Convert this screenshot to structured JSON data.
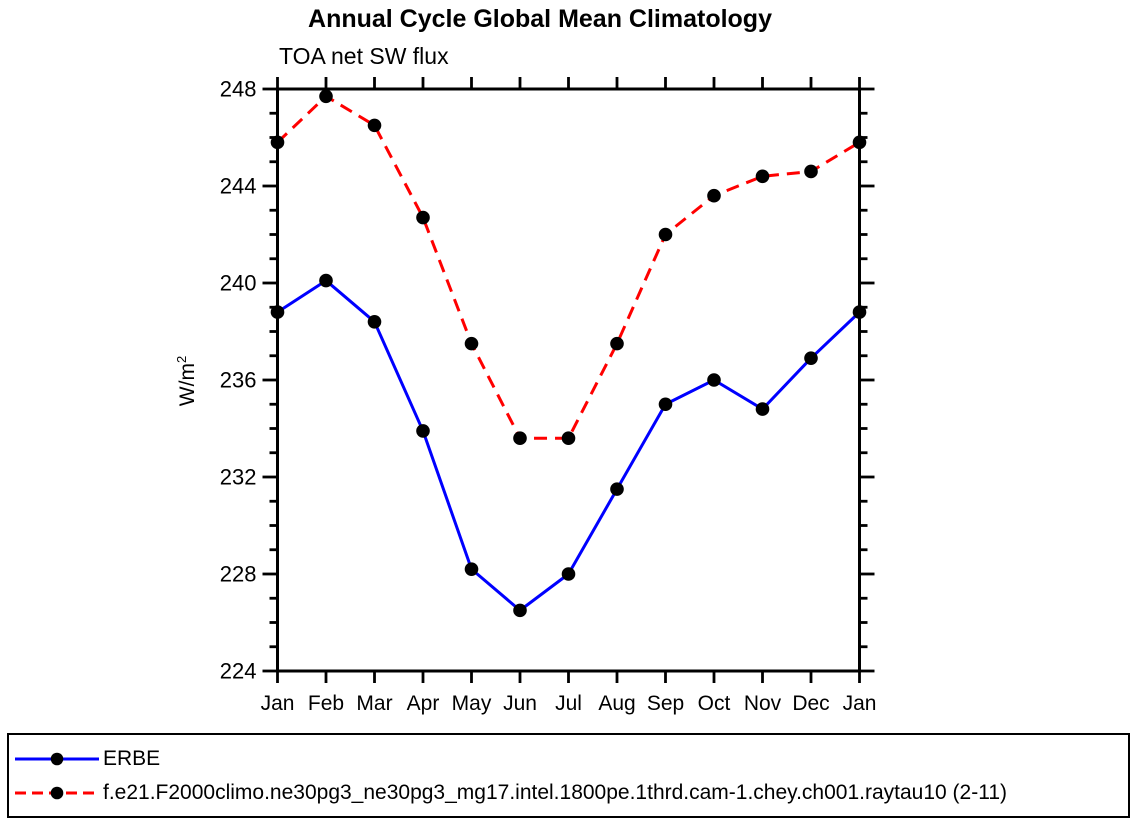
{
  "page": {
    "background": "#ffffff"
  },
  "chart_data": {
    "type": "line",
    "title": "Annual Cycle Global Mean Climatology",
    "subtitle": "TOA net SW flux",
    "ylabel": "W/m²",
    "ylabel_display": {
      "base": "W/m",
      "exponent": "2"
    },
    "categories": [
      "Jan",
      "Feb",
      "Mar",
      "Apr",
      "May",
      "Jun",
      "Jul",
      "Aug",
      "Sep",
      "Oct",
      "Nov",
      "Dec",
      "Jan"
    ],
    "ylim": [
      224,
      248
    ],
    "yticks": [
      224,
      228,
      232,
      236,
      240,
      244,
      248
    ],
    "ytick_minor_step": 1,
    "grid": false,
    "legend_position": "bottom-box",
    "axis_color": "#000000",
    "series": [
      {
        "name": "ERBE",
        "color": "#0000ff",
        "line_style": "solid",
        "marker": "filled-circle",
        "marker_color": "#000000",
        "values": [
          238.8,
          240.1,
          238.4,
          233.9,
          228.2,
          226.5,
          228.0,
          231.5,
          235.0,
          236.0,
          234.8,
          236.9,
          238.8
        ]
      },
      {
        "name": "f.e21.F2000climo.ne30pg3_ne30pg3_mg17.intel.1800pe.1thrd.cam-1.chey.ch001.raytau10 (2-11)",
        "color": "#ff0000",
        "line_style": "dashed",
        "marker": "filled-circle",
        "marker_color": "#000000",
        "values": [
          245.8,
          247.7,
          246.5,
          242.7,
          237.5,
          233.6,
          233.6,
          237.5,
          242.0,
          243.6,
          244.4,
          244.6,
          245.8
        ]
      }
    ]
  }
}
